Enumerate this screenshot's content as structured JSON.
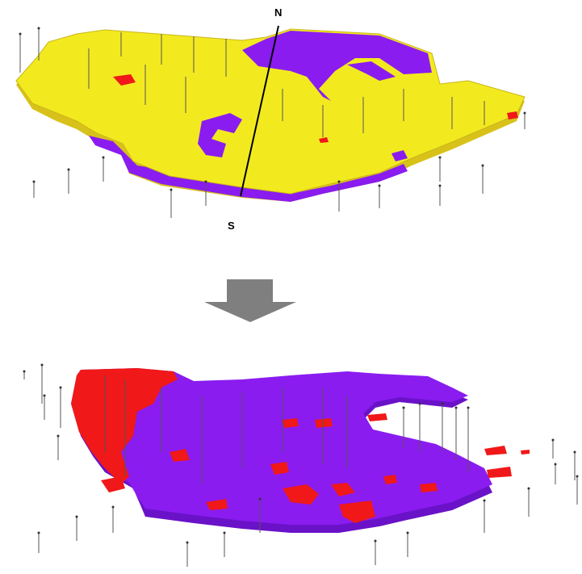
{
  "compass": {
    "north_label": "N",
    "south_label": "S"
  },
  "colors": {
    "background": "#ffffff",
    "layer_top_yellow": "#f2ea1f",
    "layer_yellow_side": "#d8c21a",
    "layer_purple": "#8a1cf0",
    "layer_red": "#f01818",
    "arrow": "#7f7f7f",
    "well_line": "#555555"
  },
  "icons": {
    "transition_arrow": "down-arrow-icon"
  }
}
